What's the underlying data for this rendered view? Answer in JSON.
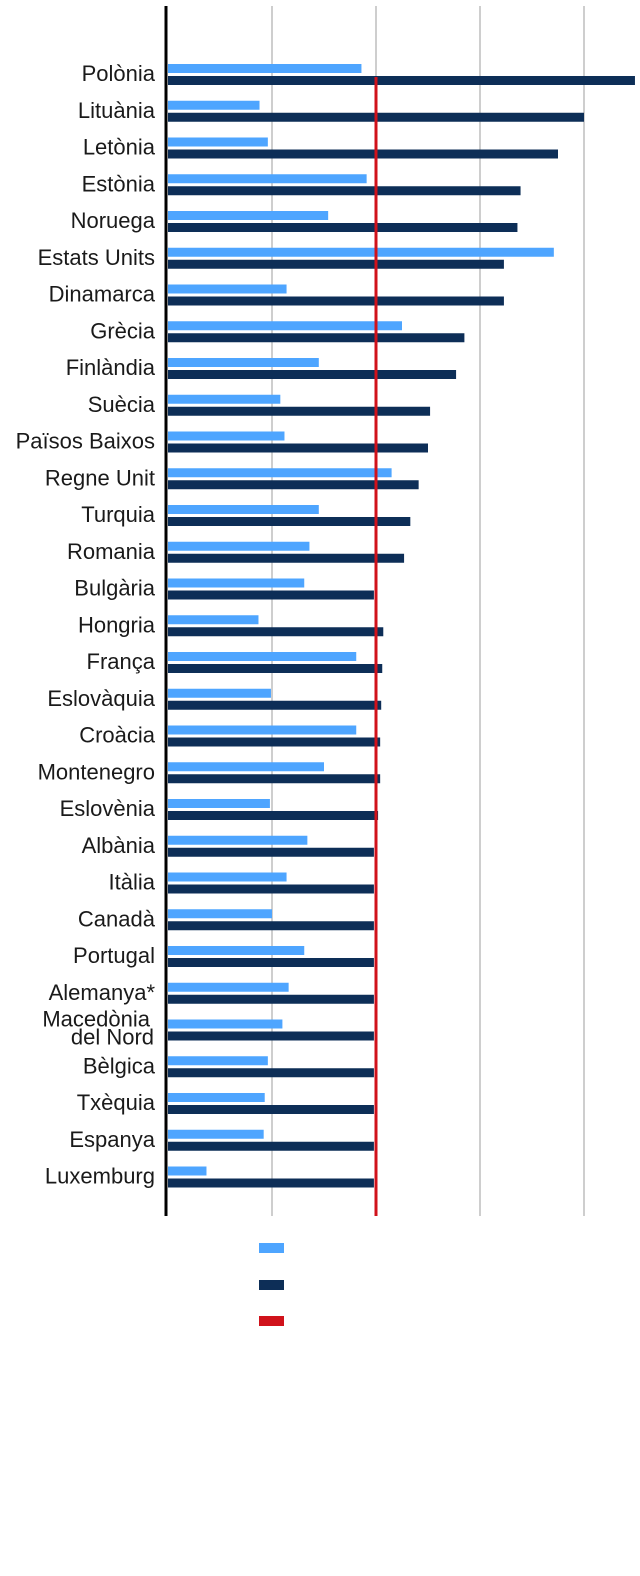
{
  "chart_data": {
    "type": "bar",
    "orientation": "horizontal",
    "title": "",
    "xlabel": "",
    "ylabel": "",
    "xlim": [
      0,
      4.5
    ],
    "grid": true,
    "legend_placement": "bottom",
    "colors": {
      "series_1": "#4ea5ff",
      "series_2": "#0d2e57",
      "reference": "#d0121b",
      "grid": "#bdbdbd",
      "axis": "#000000"
    },
    "categories": [
      "Polònia",
      "Lituània",
      "Letònia",
      "Estònia",
      "Noruega",
      "Estats Units",
      "Dinamarca",
      "Grècia",
      "Finlàndia",
      "Suècia",
      "Països Baixos",
      "Regne Unit",
      "Turquia",
      "Romania",
      "Bulgària",
      "Hongria",
      "França",
      "Eslovàquia",
      "Croàcia",
      "Montenegro",
      "Eslovènia",
      "Albània",
      "Itàlia",
      "Canadà",
      "Portugal",
      "Alemanya*",
      "Macedònia del Nord",
      "Bèlgica",
      "Txèquia",
      "Espanya",
      "Luxemburg"
    ],
    "series": [
      {
        "values": [
          1.86,
          0.88,
          0.96,
          1.91,
          1.54,
          3.71,
          1.14,
          2.25,
          1.45,
          1.08,
          1.12,
          2.15,
          1.45,
          1.36,
          1.31,
          0.87,
          1.81,
          0.99,
          1.81,
          1.5,
          0.98,
          1.34,
          1.14,
          1.0,
          1.31,
          1.16,
          1.1,
          0.96,
          0.93,
          0.92,
          0.37
        ]
      },
      {
        "values": [
          4.49,
          4.0,
          3.75,
          3.39,
          3.36,
          3.23,
          3.23,
          2.85,
          2.77,
          2.52,
          2.5,
          2.41,
          2.33,
          2.27,
          1.98,
          2.07,
          2.06,
          2.05,
          2.04,
          2.04,
          2.02,
          1.98,
          1.98,
          1.98,
          1.98,
          1.98,
          1.98,
          1.98,
          1.98,
          1.98,
          1.98
        ]
      }
    ],
    "reference_line": {
      "value": 2.0
    },
    "legend": {
      "entries": [
        {
          "series": "series_1",
          "label": ""
        },
        {
          "series": "series_2",
          "label": ""
        },
        {
          "series": "reference",
          "label": ""
        }
      ]
    }
  }
}
